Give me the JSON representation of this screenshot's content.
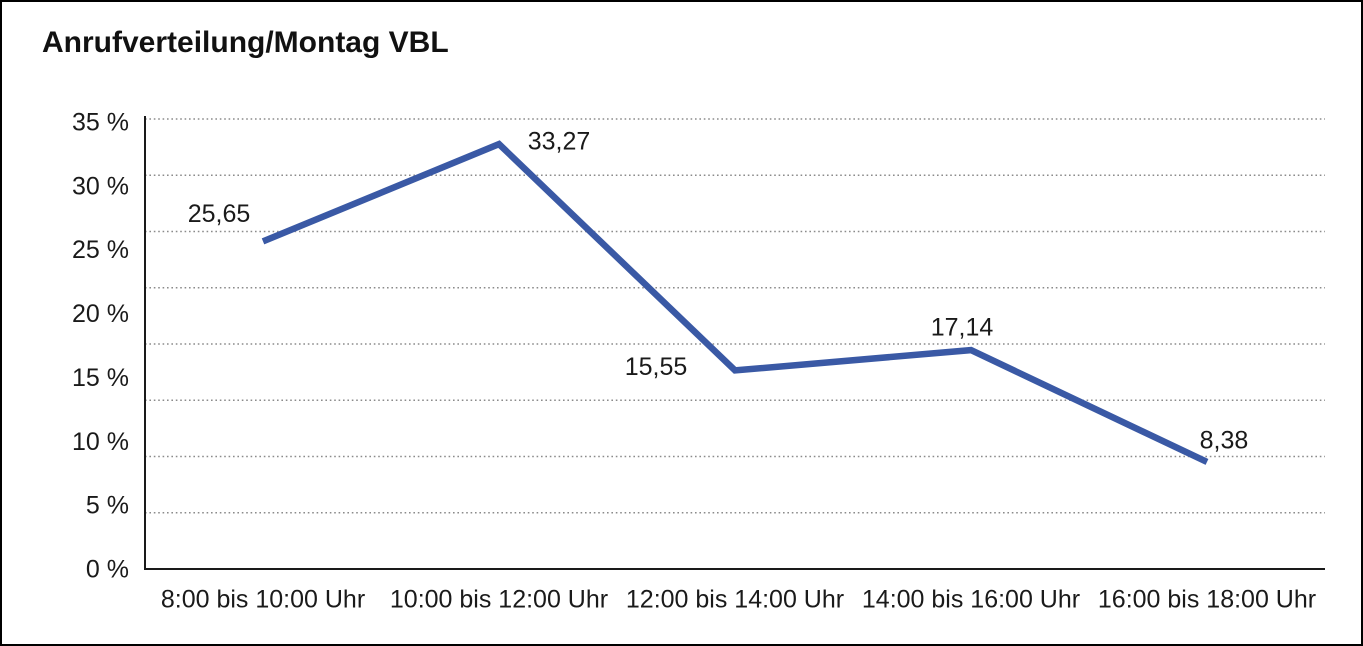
{
  "chart_data": {
    "type": "line",
    "title": "Anrufverteilung/Montag VBL",
    "categories": [
      "8:00 bis 10:00 Uhr",
      "10:00 bis 12:00 Uhr",
      "12:00 bis 14:00 Uhr",
      "14:00 bis 16:00 Uhr",
      "16:00 bis 18:00 Uhr"
    ],
    "values": [
      25.65,
      33.27,
      15.55,
      17.14,
      8.38
    ],
    "value_labels": [
      "25,65",
      "33,27",
      "15,55",
      "17,14",
      "8,38"
    ],
    "xlabel": "",
    "ylabel": "",
    "ylim": [
      0,
      35
    ],
    "ytick_values": [
      35,
      30,
      25,
      20,
      15,
      10,
      5,
      0
    ],
    "ytick_labels": [
      "35 %",
      "30 %",
      "25 %",
      "20 %",
      "15 %",
      "10 %",
      "5 %",
      "0 %"
    ],
    "grid": "horizontal dotted, 8 equal divisions of plot height",
    "gridline_divisions": 8,
    "legend_position": "none",
    "colors": {
      "line": "#3A59A5",
      "axis": "#1a1a1a",
      "grid": "#8b8b8b",
      "text": "#1a1a1a",
      "background": "#ffffff",
      "frame_border": "#000000"
    }
  }
}
